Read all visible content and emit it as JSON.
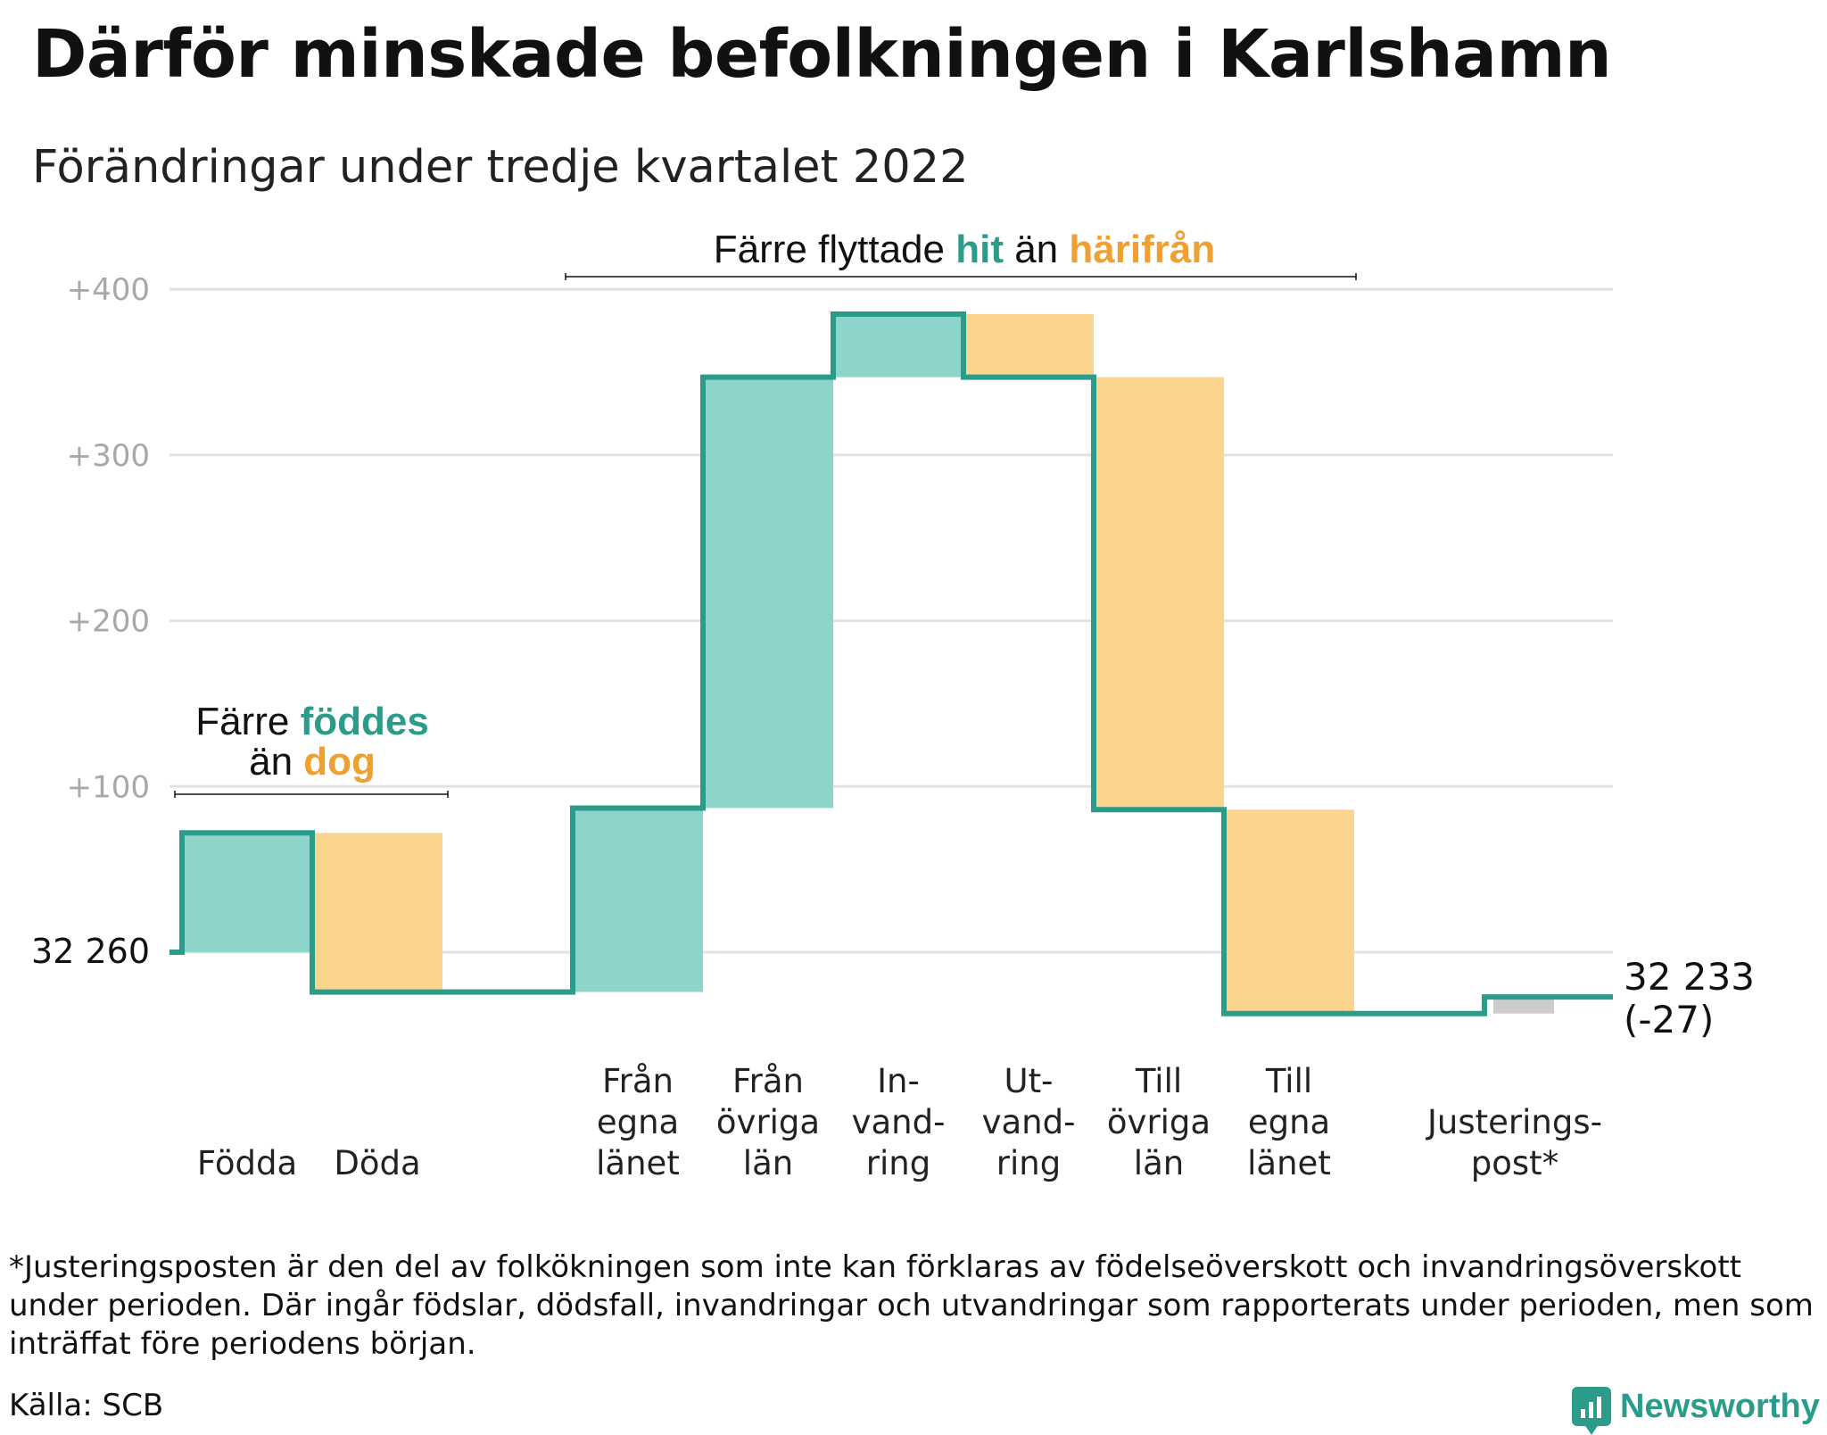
{
  "title": "Därför minskade befolkningen i Karlshamn",
  "subtitle": "Förändringar under tredje kvartalet 2022",
  "footnote": "*Justeringsposten är den del av folkökningen som inte kan förklaras av födelseöverskott och invandringsöverskott under perioden. Där ingår födslar, dödsfall, invandringar och utvandringar som rapporterats under perioden, men som inträffat före periodens början.",
  "source": "Källa: SCB",
  "brand": "Newsworthy",
  "colors": {
    "teal": "#2b9c8a",
    "teal_light": "#8dd4cb",
    "orange": "#f0a030",
    "orange_light": "#fbd58e",
    "grey": "#cccccc",
    "grid": "#e2e2e2",
    "tick": "#a8a8a8"
  },
  "chart_data": {
    "type": "waterfall",
    "title": "Därför minskade befolkningen i Karlshamn",
    "subtitle": "Förändringar under tredje kvartalet 2022",
    "start_value": 32260,
    "start_label": "32 260",
    "end_value": 32233,
    "end_label": "32 233",
    "end_change_label": "(-27)",
    "y_ticks": [
      {
        "value": 100,
        "label": "+100"
      },
      {
        "value": 200,
        "label": "+200"
      },
      {
        "value": 300,
        "label": "+300"
      },
      {
        "value": 400,
        "label": "+400"
      }
    ],
    "ylim": [
      -75,
      430
    ],
    "steps": [
      {
        "label_lines": [
          "Födda"
        ],
        "change": 72,
        "kind": "in"
      },
      {
        "label_lines": [
          "Döda"
        ],
        "change": -96,
        "kind": "out"
      },
      {
        "label_lines": [
          "Från",
          "egna",
          "länet"
        ],
        "change": 111,
        "kind": "in"
      },
      {
        "label_lines": [
          "Från",
          "övriga",
          "län"
        ],
        "change": 260,
        "kind": "in"
      },
      {
        "label_lines": [
          "In-",
          "vand-",
          "ring"
        ],
        "change": 38,
        "kind": "in"
      },
      {
        "label_lines": [
          "Ut-",
          "vand-",
          "ring"
        ],
        "change": -38,
        "kind": "out"
      },
      {
        "label_lines": [
          "Till",
          "övriga",
          "län"
        ],
        "change": -261,
        "kind": "out"
      },
      {
        "label_lines": [
          "Till",
          "egna",
          "länet"
        ],
        "change": -123,
        "kind": "out"
      },
      {
        "label_lines": [
          "Justerings-",
          "post*"
        ],
        "change": 10,
        "kind": "adjust"
      }
    ],
    "annotations": [
      {
        "id": "births",
        "line1_prefix": "Färre ",
        "line1_highlight": "föddes",
        "line2_prefix": "än ",
        "line2_highlight": "dog"
      },
      {
        "id": "moves",
        "prefix": "Färre flyttade ",
        "highlight1": "hit",
        "middle": " än ",
        "highlight2": "härifrån"
      }
    ]
  }
}
